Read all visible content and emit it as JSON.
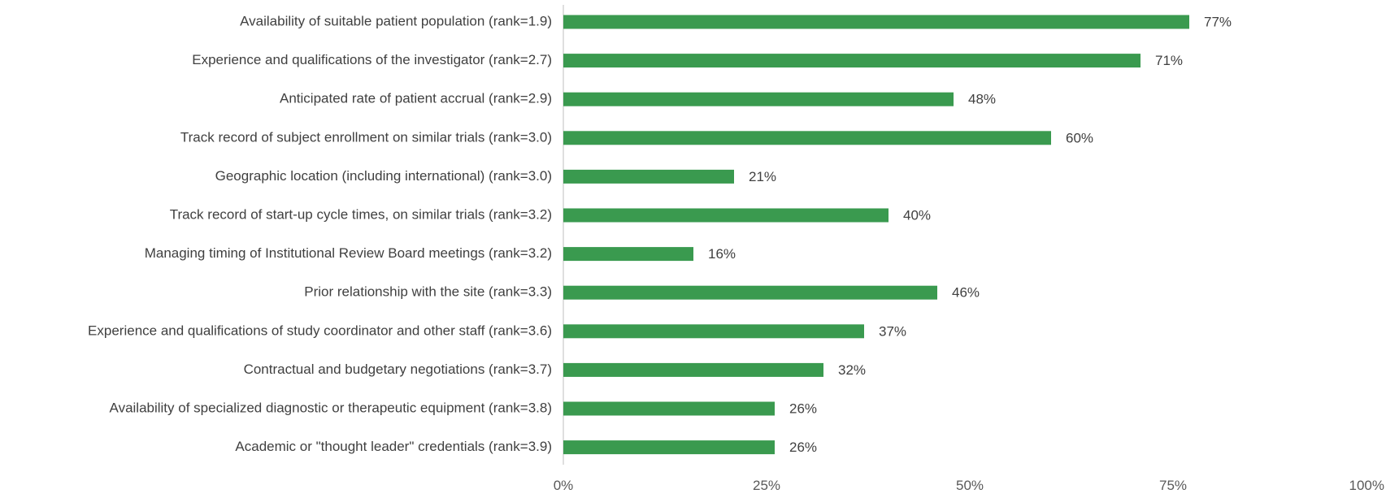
{
  "chart_data": {
    "type": "bar",
    "orientation": "horizontal",
    "categories": [
      "Availability of suitable patient population (rank=1.9)",
      "Experience and qualifications of the investigator (rank=2.7)",
      "Anticipated rate of patient accrual (rank=2.9)",
      "Track record of subject enrollment on similar trials (rank=3.0)",
      "Geographic location (including international) (rank=3.0)",
      "Track record of start-up cycle times, on similar trials (rank=3.2)",
      "Managing timing of Institutional Review Board meetings (rank=3.2)",
      "Prior relationship with the site (rank=3.3)",
      "Experience and qualifications of study coordinator and other staff (rank=3.6)",
      "Contractual and budgetary negotiations (rank=3.7)",
      "Availability of specialized diagnostic or therapeutic equipment (rank=3.8)",
      "Academic or \"thought leader\" credentials (rank=3.9)"
    ],
    "values": [
      77,
      71,
      48,
      60,
      21,
      40,
      16,
      46,
      37,
      32,
      26,
      26
    ],
    "value_labels": [
      "77%",
      "71%",
      "48%",
      "60%",
      "21%",
      "40%",
      "16%",
      "46%",
      "37%",
      "32%",
      "26%",
      "26%"
    ],
    "xlim": [
      0,
      100
    ],
    "x_ticks": [
      0,
      25,
      50,
      75,
      100
    ],
    "x_tick_labels": [
      "0%",
      "25%",
      "50%",
      "75%",
      "100%"
    ],
    "bar_color": "#3a9a4f",
    "title": "",
    "xlabel": "",
    "ylabel": "",
    "grid": false,
    "legend": "none"
  }
}
